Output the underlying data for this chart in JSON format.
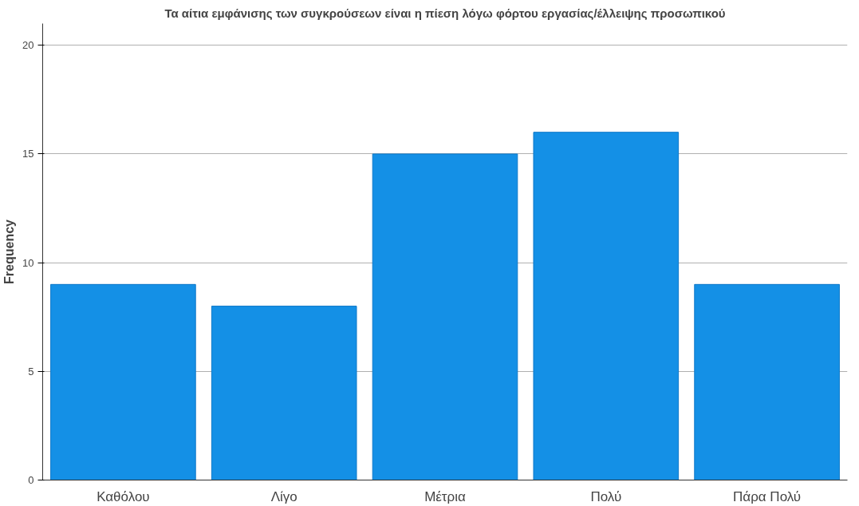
{
  "chart_data": {
    "type": "bar",
    "title": "Τα αίτια εμφάνισης των συγκρούσεων είναι η πίεση λόγω φόρτου εργασίας/έλλειψης προσωπικού",
    "ylabel": "Frequency",
    "categories": [
      "Καθόλου",
      "Λίγο",
      "Μέτρια",
      "Πολύ",
      "Πάρα Πολύ"
    ],
    "values": [
      9,
      8,
      15,
      16,
      9
    ],
    "color": "#1490e6",
    "ylim": [
      0,
      21
    ],
    "yticks": [
      0,
      5,
      10,
      15,
      20
    ],
    "grid": "y"
  }
}
